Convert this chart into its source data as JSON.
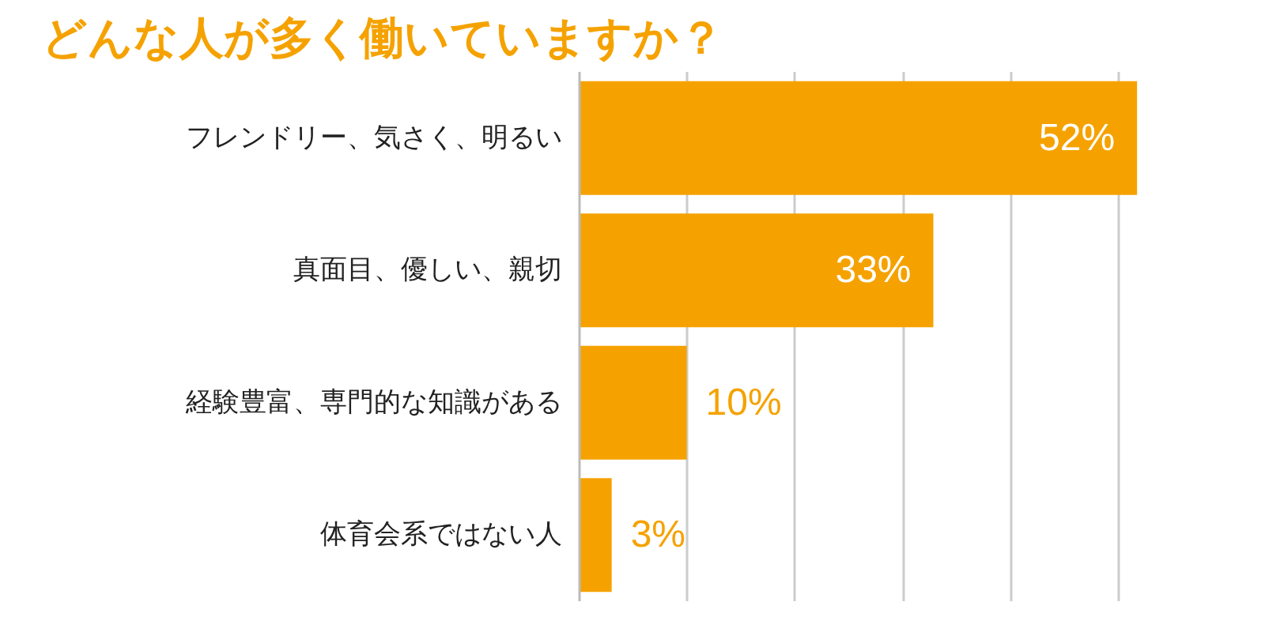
{
  "chart_data": {
    "type": "bar",
    "orientation": "horizontal",
    "title": "どんな人が多く働いていますか？",
    "categories": [
      "フレンドリー、気さく、明るい",
      "真面目、優しい、親切",
      "経験豊富、専門的な知識がある",
      "体育会系ではない人"
    ],
    "values": [
      52,
      33,
      10,
      3
    ],
    "color": "#f5a200",
    "value_labels": [
      "52%",
      "33%",
      "10%",
      "3%"
    ],
    "grid": "x",
    "tick_labels": "y"
  }
}
